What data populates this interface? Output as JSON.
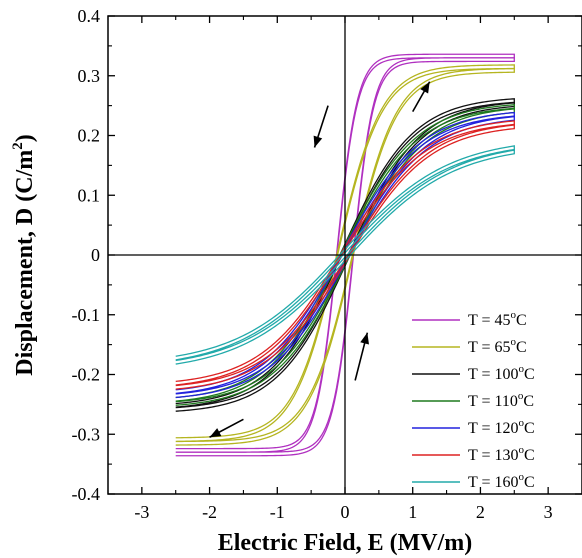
{
  "chart_data": {
    "type": "line",
    "xlabel": "Electric Field, E (MV/m)",
    "ylabel_main": "Displacement, D (C/m",
    "ylabel_sup": "2",
    "ylabel_end": ")",
    "xlim": [
      -3.5,
      3.5
    ],
    "ylim": [
      -0.4,
      0.4
    ],
    "xticks": [
      -3,
      -2,
      -1,
      0,
      1,
      2,
      3
    ],
    "xtick_labels": [
      "-3",
      "-2",
      "-1",
      "0",
      "1",
      "2",
      "3"
    ],
    "yticks": [
      -0.4,
      -0.3,
      -0.2,
      -0.1,
      0,
      0.1,
      0.2,
      0.3,
      0.4
    ],
    "ytick_labels": [
      "-0.4",
      "-0.3",
      "-0.2",
      "-0.1",
      "0",
      "0.1",
      "0.2",
      "0.3",
      "0.4"
    ],
    "grid": false,
    "legend_position": "bottom-right",
    "legend_prefix": "T = ",
    "legend_unit_sup": "o",
    "legend_unit_end": "C",
    "emax": 2.5,
    "series": [
      {
        "name": "T = 45oC",
        "temp": "45",
        "color": "#b030c0",
        "dmax": 0.33,
        "coercive": 0.12,
        "scale": 0.3
      },
      {
        "name": "T = 65oC",
        "temp": "65",
        "color": "#b5b520",
        "dmax": 0.312,
        "coercive": 0.11,
        "scale": 0.65
      },
      {
        "name": "T = 100oC",
        "temp": "100",
        "color": "#111111",
        "dmax": 0.255,
        "coercive": 0.05,
        "scale": 1.05
      },
      {
        "name": "T = 110oC",
        "temp": "110",
        "color": "#1f7a1f",
        "dmax": 0.245,
        "coercive": 0.05,
        "scale": 1.1
      },
      {
        "name": "T = 120oC",
        "temp": "120",
        "color": "#2222dd",
        "dmax": 0.232,
        "coercive": 0.04,
        "scale": 1.15
      },
      {
        "name": "T = 130oC",
        "temp": "130",
        "color": "#dd2222",
        "dmax": 0.218,
        "coercive": 0.04,
        "scale": 1.2
      },
      {
        "name": "T = 160oC",
        "temp": "160",
        "color": "#22aaaa",
        "dmax": 0.176,
        "coercive": 0.03,
        "scale": 1.55
      }
    ],
    "arrows": [
      {
        "from": [
          -0.25,
          0.25
        ],
        "to": [
          -0.45,
          0.18
        ]
      },
      {
        "from": [
          1.0,
          0.24
        ],
        "to": [
          1.25,
          0.29
        ]
      },
      {
        "from": [
          0.15,
          -0.21
        ],
        "to": [
          0.33,
          -0.13
        ]
      },
      {
        "from": [
          -1.5,
          -0.275
        ],
        "to": [
          -2.0,
          -0.305
        ]
      }
    ]
  }
}
